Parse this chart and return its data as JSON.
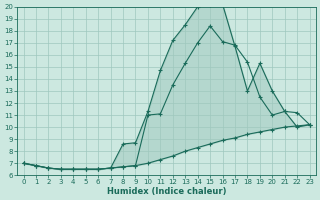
{
  "xlabel": "Humidex (Indice chaleur)",
  "bg_color": "#cce8e0",
  "grid_color": "#9fc8be",
  "line_color": "#1a6b5a",
  "xlim": [
    -0.5,
    23.5
  ],
  "ylim": [
    6,
    20
  ],
  "xticks": [
    0,
    1,
    2,
    3,
    4,
    5,
    6,
    7,
    8,
    9,
    10,
    11,
    12,
    13,
    14,
    15,
    16,
    17,
    18,
    19,
    20,
    21,
    22,
    23
  ],
  "yticks": [
    6,
    7,
    8,
    9,
    10,
    11,
    12,
    13,
    14,
    15,
    16,
    17,
    18,
    19,
    20
  ],
  "line1_x": [
    0,
    1,
    2,
    3,
    4,
    5,
    6,
    7,
    8,
    9,
    10,
    11,
    12,
    13,
    14,
    15,
    16,
    17,
    18,
    19,
    20,
    21,
    22,
    23
  ],
  "line1_y": [
    7.0,
    6.8,
    6.6,
    6.5,
    6.5,
    6.5,
    6.5,
    6.6,
    8.6,
    8.7,
    11.3,
    14.7,
    17.2,
    18.5,
    20.0,
    20.1,
    20.2,
    16.7,
    13.0,
    15.3,
    13.0,
    11.3,
    10.0,
    10.2
  ],
  "line2_x": [
    0,
    1,
    2,
    3,
    4,
    5,
    6,
    7,
    8,
    9,
    10,
    11,
    12,
    13,
    14,
    15,
    16,
    17,
    18,
    19,
    20,
    21,
    22,
    23
  ],
  "line2_y": [
    7.0,
    6.8,
    6.6,
    6.5,
    6.5,
    6.5,
    6.5,
    6.6,
    6.7,
    6.8,
    11.0,
    11.1,
    13.5,
    15.3,
    17.0,
    18.4,
    17.1,
    16.8,
    15.4,
    12.5,
    11.0,
    11.3,
    11.2,
    10.2
  ],
  "line3_x": [
    0,
    1,
    2,
    3,
    4,
    5,
    6,
    7,
    8,
    9,
    10,
    11,
    12,
    13,
    14,
    15,
    16,
    17,
    18,
    19,
    20,
    21,
    22,
    23
  ],
  "line3_y": [
    7.0,
    6.8,
    6.6,
    6.5,
    6.5,
    6.5,
    6.5,
    6.6,
    6.7,
    6.8,
    7.0,
    7.3,
    7.6,
    8.0,
    8.3,
    8.6,
    8.9,
    9.1,
    9.4,
    9.6,
    9.8,
    10.0,
    10.1,
    10.2
  ]
}
